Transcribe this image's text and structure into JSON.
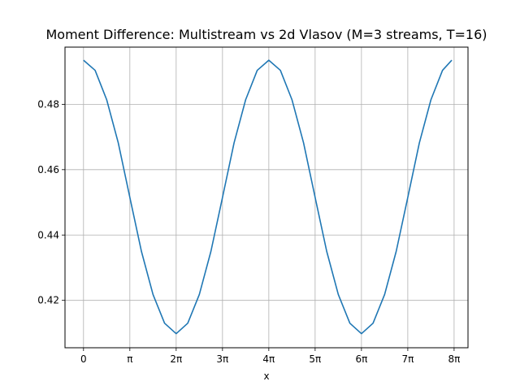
{
  "chart_data": {
    "type": "line",
    "title": "Moment Difference: Multistream vs 2d Vlasov (M=3 streams, T=16)",
    "xlabel": "x",
    "ylabel": "",
    "x_range_units": "pi",
    "xlim": [
      -0.4,
      8.3
    ],
    "ylim": [
      0.4055,
      0.4975
    ],
    "x_ticks": [
      {
        "value": 0,
        "label": "0"
      },
      {
        "value": 1,
        "label": "π"
      },
      {
        "value": 2,
        "label": "2π"
      },
      {
        "value": 3,
        "label": "3π"
      },
      {
        "value": 4,
        "label": "4π"
      },
      {
        "value": 5,
        "label": "5π"
      },
      {
        "value": 6,
        "label": "6π"
      },
      {
        "value": 7,
        "label": "7π"
      },
      {
        "value": 8,
        "label": "8π"
      }
    ],
    "y_ticks": [
      {
        "value": 0.42,
        "label": "0.42"
      },
      {
        "value": 0.44,
        "label": "0.44"
      },
      {
        "value": 0.46,
        "label": "0.46"
      },
      {
        "value": 0.48,
        "label": "0.48"
      }
    ],
    "grid": true,
    "legend": "none",
    "line_color": "#1f77b4",
    "series": [
      {
        "x": [
          0,
          0.25,
          0.5,
          0.75,
          1,
          1.25,
          1.5,
          1.75,
          2,
          2.25,
          2.5,
          2.75,
          3,
          3.25,
          3.5,
          3.75,
          4,
          4.25,
          4.5,
          4.75,
          5,
          5.25,
          5.5,
          5.75,
          6,
          6.25,
          6.5,
          6.75,
          7,
          7.25,
          7.5,
          7.75,
          7.95
        ],
        "y": [
          0.4935,
          0.4904,
          0.4814,
          0.4682,
          0.4515,
          0.435,
          0.4218,
          0.413,
          0.4098,
          0.413,
          0.4218,
          0.435,
          0.4515,
          0.4682,
          0.4814,
          0.4904,
          0.4935,
          0.4904,
          0.4814,
          0.4682,
          0.4515,
          0.435,
          0.4218,
          0.413,
          0.4098,
          0.413,
          0.4218,
          0.435,
          0.4515,
          0.4682,
          0.4814,
          0.4904,
          0.4935
        ]
      }
    ]
  }
}
